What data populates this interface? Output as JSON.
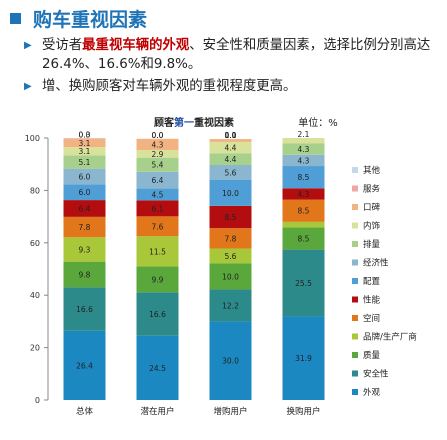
{
  "header": {
    "title": "购车重视因素",
    "accent_color": "#1f74b8",
    "icon": "square-bullet-icon"
  },
  "bullets": [
    {
      "icon": "triangle-bullet-icon",
      "pre": "受访者",
      "highlight": "最重视车辆的外观",
      "post": "、安全性和质量因素，选择比例分别高达26.4%、16.6%和9.8%。"
    },
    {
      "icon": "triangle-bullet-icon",
      "pre": "增、换购顾客对车辆外观的重视程度更高。",
      "highlight": "",
      "post": ""
    }
  ],
  "chart_data": {
    "type": "bar",
    "stacked": true,
    "title_parts": [
      "顾客",
      "第一",
      "重视因素"
    ],
    "title_colors": [
      "#222222",
      "#1f4e9e",
      "#222222"
    ],
    "unit_label": "单位：%",
    "categories": [
      "总体",
      "潜在用户",
      "增购用户",
      "换购用户"
    ],
    "ylim": [
      0,
      100
    ],
    "yticks": [
      0,
      20,
      40,
      60,
      80,
      100
    ],
    "legend_position": "right",
    "series": [
      {
        "name": "外观",
        "color": "#1b88c2",
        "values": [
          26.4,
          24.5,
          30.0,
          31.9
        ],
        "labels": [
          "26.4",
          "24.5",
          "30.0",
          "31.9"
        ]
      },
      {
        "name": "安全性",
        "color": "#2c8a8a",
        "values": [
          16.6,
          16.6,
          12.2,
          25.5
        ],
        "labels": [
          "16.6",
          "16.6",
          "12.2",
          "25.5"
        ]
      },
      {
        "name": "质量",
        "color": "#5aa83c",
        "values": [
          9.8,
          9.9,
          10.0,
          8.5
        ],
        "labels": [
          "9.8",
          "9.9",
          "10.0",
          "8.5"
        ]
      },
      {
        "name": "品牌/生产厂商",
        "color": "#a8c83a",
        "values": [
          9.3,
          11.5,
          5.6,
          2.1
        ],
        "labels": [
          "9.3",
          "11.5",
          "5.6",
          "2.1"
        ]
      },
      {
        "name": "空间",
        "color": "#e2761a",
        "values": [
          7.8,
          7.6,
          7.8,
          8.5
        ],
        "labels": [
          "7.8",
          "7.6",
          "7.8",
          "8.5"
        ]
      },
      {
        "name": "性能",
        "color": "#b40d10",
        "values": [
          6.4,
          6.1,
          8.5,
          4.3
        ],
        "labels": [
          "6.4",
          "6.1",
          "8.5",
          "4.3"
        ]
      },
      {
        "name": "配置",
        "color": "#4f9fd6",
        "values": [
          6.0,
          4.5,
          10.0,
          8.5
        ],
        "labels": [
          "6.0",
          "4.5",
          "10.0",
          "8.5"
        ]
      },
      {
        "name": "经济性",
        "color": "#8bb6d0",
        "values": [
          6.0,
          6.4,
          5.6,
          4.3
        ],
        "labels": [
          "6.0",
          "6.4",
          "5.6",
          "4.3"
        ]
      },
      {
        "name": "排量",
        "color": "#a7d08c",
        "values": [
          5.1,
          5.4,
          4.4,
          4.3
        ],
        "labels": [
          "5.1",
          "5.4",
          "4.4",
          "4.3"
        ]
      },
      {
        "name": "内饰",
        "color": "#d9e29a",
        "values": [
          3.1,
          2.9,
          4.4,
          2.1
        ],
        "labels": [
          "3.1",
          "2.9",
          "4.4",
          "2.1"
        ]
      },
      {
        "name": "口碑",
        "color": "#f2b383",
        "values": [
          3.1,
          4.3,
          1.1,
          0.0
        ],
        "labels": [
          "3.1",
          "4.3",
          "1.1",
          ""
        ]
      },
      {
        "name": "服务",
        "color": "#eea6a6",
        "values": [
          0.3,
          0.0,
          0.0,
          0.0
        ],
        "labels": [
          "0.3",
          "0.0",
          "0.0",
          ""
        ]
      },
      {
        "name": "其他",
        "color": "#c5d7ea",
        "values": [
          0.0,
          0.0,
          0.0,
          0.0
        ],
        "labels": [
          "0.0",
          "0.0",
          "0.0",
          ""
        ]
      }
    ]
  }
}
